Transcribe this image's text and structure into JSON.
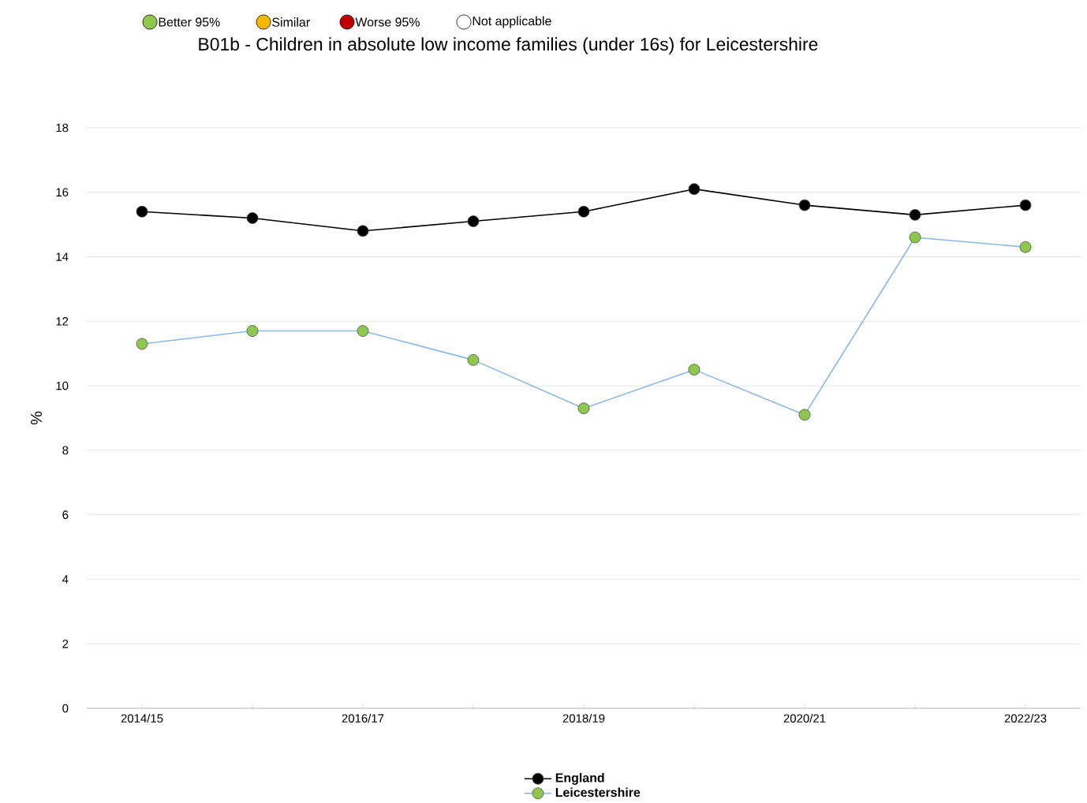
{
  "chart_data": {
    "type": "line",
    "title": "B01b - Children in absolute low income families (under 16s) for Leicestershire",
    "ylabel": "%",
    "categories": [
      "2014/15",
      null,
      "2016/17",
      null,
      "2018/19",
      null,
      "2020/21",
      null,
      "2022/23"
    ],
    "series": [
      {
        "name": "England",
        "color": "#000000",
        "values": [
          15.4,
          15.2,
          14.8,
          15.1,
          15.4,
          16.1,
          15.6,
          15.3,
          15.6
        ]
      },
      {
        "name": "Leicestershire",
        "color": "#8ab8e8",
        "values": [
          11.3,
          11.7,
          11.7,
          10.8,
          9.3,
          10.5,
          9.1,
          14.6,
          14.3
        ]
      }
    ],
    "ylim": [
      0,
      18
    ],
    "yticks": [
      0,
      2,
      4,
      6,
      8,
      10,
      12,
      14,
      16,
      18
    ],
    "grid": "y",
    "legend": "bottom",
    "marker": "circle",
    "annotations": [
      "Better 95%",
      "Similar",
      "Worse 95%",
      "Not applicable"
    ]
  }
}
